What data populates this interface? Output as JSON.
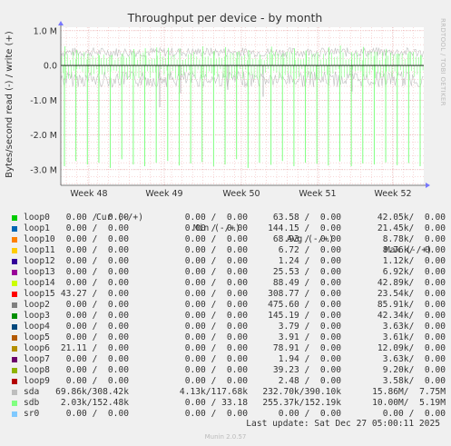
{
  "chart_data": {
    "type": "line",
    "title": "Throughput per device - by month",
    "ylabel": "Bytes/second read (-) / write (+)",
    "side_label": "RRDTOOL / TOBI OETIKER",
    "yticks": [
      {
        "value": 1000000,
        "label": "1.0 M"
      },
      {
        "value": 0,
        "label": "0.0"
      },
      {
        "value": -1000000,
        "label": "-1.0 M"
      },
      {
        "value": -2000000,
        "label": "-2.0 M"
      },
      {
        "value": -3000000,
        "label": "-3.0 M"
      }
    ],
    "ylim": [
      -3450000,
      1100000
    ],
    "xticks": [
      "Week 48",
      "Week 49",
      "Week 50",
      "Week 51",
      "Week 52"
    ],
    "grid": true,
    "legend_header": {
      "cur": "Cur (-/+)",
      "min": "Min (-/+)",
      "avg": "Avg (-/+)",
      "max": "Max (-/+)"
    },
    "series": [
      {
        "name": "loop0",
        "color": "#00cc00",
        "cur": "0.00 /  0.00",
        "min": "0.00 /  0.00",
        "avg": "63.58 /  0.00",
        "max": "42.05k/  0.00"
      },
      {
        "name": "loop1",
        "color": "#0066b3",
        "cur": "0.00 /  0.00",
        "min": "0.00 /  0.00",
        "avg": "144.15 /  0.00",
        "max": "21.45k/  0.00"
      },
      {
        "name": "loop10",
        "color": "#ff8000",
        "cur": "0.00 /  0.00",
        "min": "0.00 /  0.00",
        "avg": "68.93 /  0.00",
        "max": "8.78k/  0.00"
      },
      {
        "name": "loop11",
        "color": "#ffcc00",
        "cur": "0.00 /  0.00",
        "min": "0.00 /  0.00",
        "avg": "6.72 /  0.00",
        "max": "8.76k/  0.00"
      },
      {
        "name": "loop12",
        "color": "#330099",
        "cur": "0.00 /  0.00",
        "min": "0.00 /  0.00",
        "avg": "1.24 /  0.00",
        "max": "1.12k/  0.00"
      },
      {
        "name": "loop13",
        "color": "#990099",
        "cur": "0.00 /  0.00",
        "min": "0.00 /  0.00",
        "avg": "25.53 /  0.00",
        "max": "6.92k/  0.00"
      },
      {
        "name": "loop14",
        "color": "#ccff00",
        "cur": "0.00 /  0.00",
        "min": "0.00 /  0.00",
        "avg": "88.49 /  0.00",
        "max": "42.89k/  0.00"
      },
      {
        "name": "loop15",
        "color": "#ff0000",
        "cur": "43.27 /  0.00",
        "min": "0.00 /  0.00",
        "avg": "308.77 /  0.00",
        "max": "23.54k/  0.00"
      },
      {
        "name": "loop2",
        "color": "#808080",
        "cur": "0.00 /  0.00",
        "min": "0.00 /  0.00",
        "avg": "475.60 /  0.00",
        "max": "85.91k/  0.00"
      },
      {
        "name": "loop3",
        "color": "#008f00",
        "cur": "0.00 /  0.00",
        "min": "0.00 /  0.00",
        "avg": "145.19 /  0.00",
        "max": "42.34k/  0.00"
      },
      {
        "name": "loop4",
        "color": "#00487d",
        "cur": "0.00 /  0.00",
        "min": "0.00 /  0.00",
        "avg": "3.79 /  0.00",
        "max": "3.63k/  0.00"
      },
      {
        "name": "loop5",
        "color": "#b35a00",
        "cur": "0.00 /  0.00",
        "min": "0.00 /  0.00",
        "avg": "3.91 /  0.00",
        "max": "3.61k/  0.00"
      },
      {
        "name": "loop6",
        "color": "#b38f00",
        "cur": "21.11 /  0.00",
        "min": "0.00 /  0.00",
        "avg": "78.91 /  0.00",
        "max": "12.09k/  0.00"
      },
      {
        "name": "loop7",
        "color": "#6b006b",
        "cur": "0.00 /  0.00",
        "min": "0.00 /  0.00",
        "avg": "1.94 /  0.00",
        "max": "3.63k/  0.00"
      },
      {
        "name": "loop8",
        "color": "#8fb300",
        "cur": "0.00 /  0.00",
        "min": "0.00 /  0.00",
        "avg": "39.23 /  0.00",
        "max": "9.20k/  0.00"
      },
      {
        "name": "loop9",
        "color": "#b30000",
        "cur": "0.00 /  0.00",
        "min": "0.00 /  0.00",
        "avg": "2.48 /  0.00",
        "max": "3.58k/  0.00"
      },
      {
        "name": "sda",
        "color": "#bebebe",
        "cur": "69.86k/308.42k",
        "min": "4.13k/117.68k",
        "avg": "232.70k/390.10k",
        "max": "15.86M/  7.75M"
      },
      {
        "name": "sdb",
        "color": "#80ff80",
        "cur": "2.03k/152.48k",
        "min": "0.00 / 33.18",
        "avg": "255.37k/152.19k",
        "max": "10.00M/  5.19M"
      },
      {
        "name": "sr0",
        "color": "#80c9ff",
        "cur": "0.00 /  0.00",
        "min": "0.00 /  0.00",
        "avg": "0.00 /  0.00",
        "max": "0.00 /  0.00"
      }
    ],
    "spikes": {
      "sdb_read_spike_values": [
        -2900000,
        -2750000,
        -2850000,
        -2800000,
        -2950000,
        -2700000,
        -2850000,
        -2900000,
        -2800000,
        -2750000,
        -2880000,
        -2820000,
        -2780000,
        -2900000,
        -2850000,
        -2700000,
        -2950000,
        -2800000,
        -2860000,
        -2750000,
        -2900000,
        -2800000,
        -2830000,
        -2880000,
        -2760000,
        -2900000,
        -2820000,
        -2850000,
        -2790000,
        -2870000,
        -2810000,
        -2900000
      ],
      "sdb_write_peak": 400000,
      "sda_read_typical": -500000,
      "sda_write_typical": 450000
    },
    "last_update": "Last update: Sat Dec 27 05:00:11 2025",
    "generator": "Munin 2.0.57"
  }
}
